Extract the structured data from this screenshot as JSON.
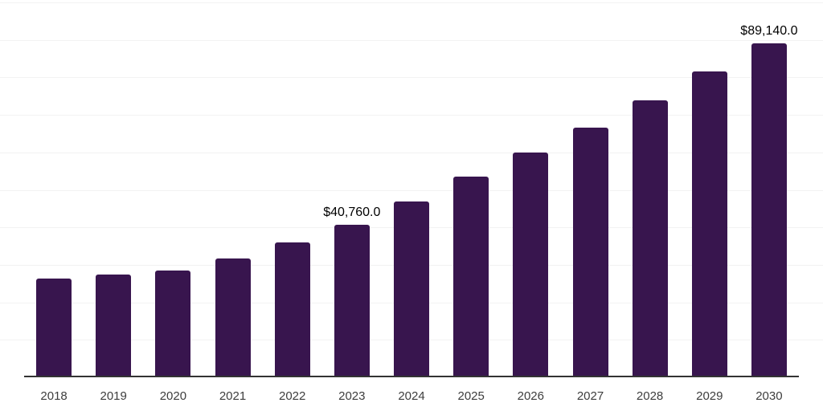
{
  "chart_data": {
    "type": "bar",
    "title": "",
    "xlabel": "",
    "ylabel": "",
    "categories": [
      "2018",
      "2019",
      "2020",
      "2021",
      "2022",
      "2023",
      "2024",
      "2025",
      "2026",
      "2027",
      "2028",
      "2029",
      "2030"
    ],
    "values": [
      26300,
      27400,
      28500,
      31700,
      36000,
      40760,
      46900,
      53600,
      59900,
      66500,
      73800,
      81500,
      89140
    ],
    "data_labels": {
      "2023": "$40,760.0",
      "2030": "$89,140.0"
    },
    "ylim": [
      0,
      100000
    ],
    "gridline_step": 10000,
    "grid": true,
    "legend": false,
    "colors": {
      "bar": "#38154E",
      "axis_line": "#333333",
      "gridline": "#f2f2f2",
      "value_label": "#000000",
      "tick_label": "#3d3d3d",
      "background": "#ffffff"
    }
  }
}
